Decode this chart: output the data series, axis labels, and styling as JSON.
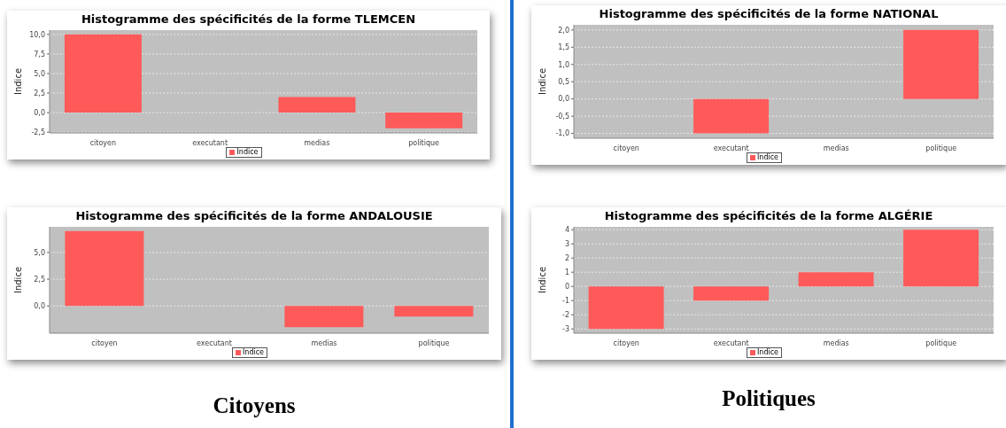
{
  "chart_data": [
    {
      "type": "bar",
      "title": "Histogramme des spécificités de la forme TLEMCEN",
      "ylabel": "Indice",
      "categories": [
        "citoyen",
        "executant",
        "medias",
        "politique"
      ],
      "series": [
        {
          "name": "Indice",
          "color": "#ff5a5a",
          "values": [
            10,
            null,
            2,
            -2
          ]
        }
      ],
      "ylim": [
        -2.6,
        10.55
      ],
      "yticks": [
        {
          "value": -2.5,
          "label": "-2,5"
        },
        {
          "value": 0,
          "label": "0,0"
        },
        {
          "value": 2.5,
          "label": "2,5"
        },
        {
          "value": 5,
          "label": "5,0"
        },
        {
          "value": 7.5,
          "label": "7,5"
        },
        {
          "value": 10,
          "label": "10,0"
        }
      ],
      "grid": "y",
      "legend": "bottom"
    },
    {
      "type": "bar",
      "title": "Histogramme des spécificités de la forme NATIONAL",
      "ylabel": "Indice",
      "categories": [
        "citoyen",
        "executant",
        "medias",
        "politique"
      ],
      "series": [
        {
          "name": "Indice",
          "color": "#ff5a5a",
          "values": [
            null,
            -1,
            null,
            2
          ]
        }
      ],
      "ylim": [
        -1.14,
        2.15
      ],
      "yticks": [
        {
          "value": -1,
          "label": "-1,0"
        },
        {
          "value": -0.5,
          "label": "-0,5"
        },
        {
          "value": 0,
          "label": "0,0"
        },
        {
          "value": 0.5,
          "label": "0,5"
        },
        {
          "value": 1,
          "label": "1,0"
        },
        {
          "value": 1.5,
          "label": "1,5"
        },
        {
          "value": 2,
          "label": "2,0"
        }
      ],
      "grid": "y",
      "legend": "bottom"
    },
    {
      "type": "bar",
      "title": "Histogramme des spécificités de la forme ANDALOUSIE",
      "ylabel": "Indice",
      "categories": [
        "citoyen",
        "executant",
        "medias",
        "politique"
      ],
      "series": [
        {
          "name": "Indice",
          "color": "#ff5a5a",
          "values": [
            7,
            null,
            -2,
            -1
          ]
        }
      ],
      "ylim": [
        -2.55,
        7.4
      ],
      "yticks": [
        {
          "value": 0,
          "label": "0,0"
        },
        {
          "value": 2.5,
          "label": "2,5"
        },
        {
          "value": 5,
          "label": "5,0"
        }
      ],
      "grid": "y",
      "legend": "bottom",
      "annotations": [
        "Citoyens"
      ]
    },
    {
      "type": "bar",
      "title": "Histogramme des spécificités de la forme ALGÉRIE",
      "ylabel": "Indice",
      "categories": [
        "citoyen",
        "executant",
        "medias",
        "politique"
      ],
      "series": [
        {
          "name": "Indice",
          "color": "#ff5a5a",
          "values": [
            -3,
            -1,
            1,
            4
          ]
        }
      ],
      "ylim": [
        -3.3,
        4.2
      ],
      "yticks": [
        -3,
        -2,
        -1,
        0,
        1,
        2,
        3,
        4
      ],
      "grid": "y",
      "legend": "bottom",
      "annotations": [
        "Politiques"
      ]
    }
  ]
}
